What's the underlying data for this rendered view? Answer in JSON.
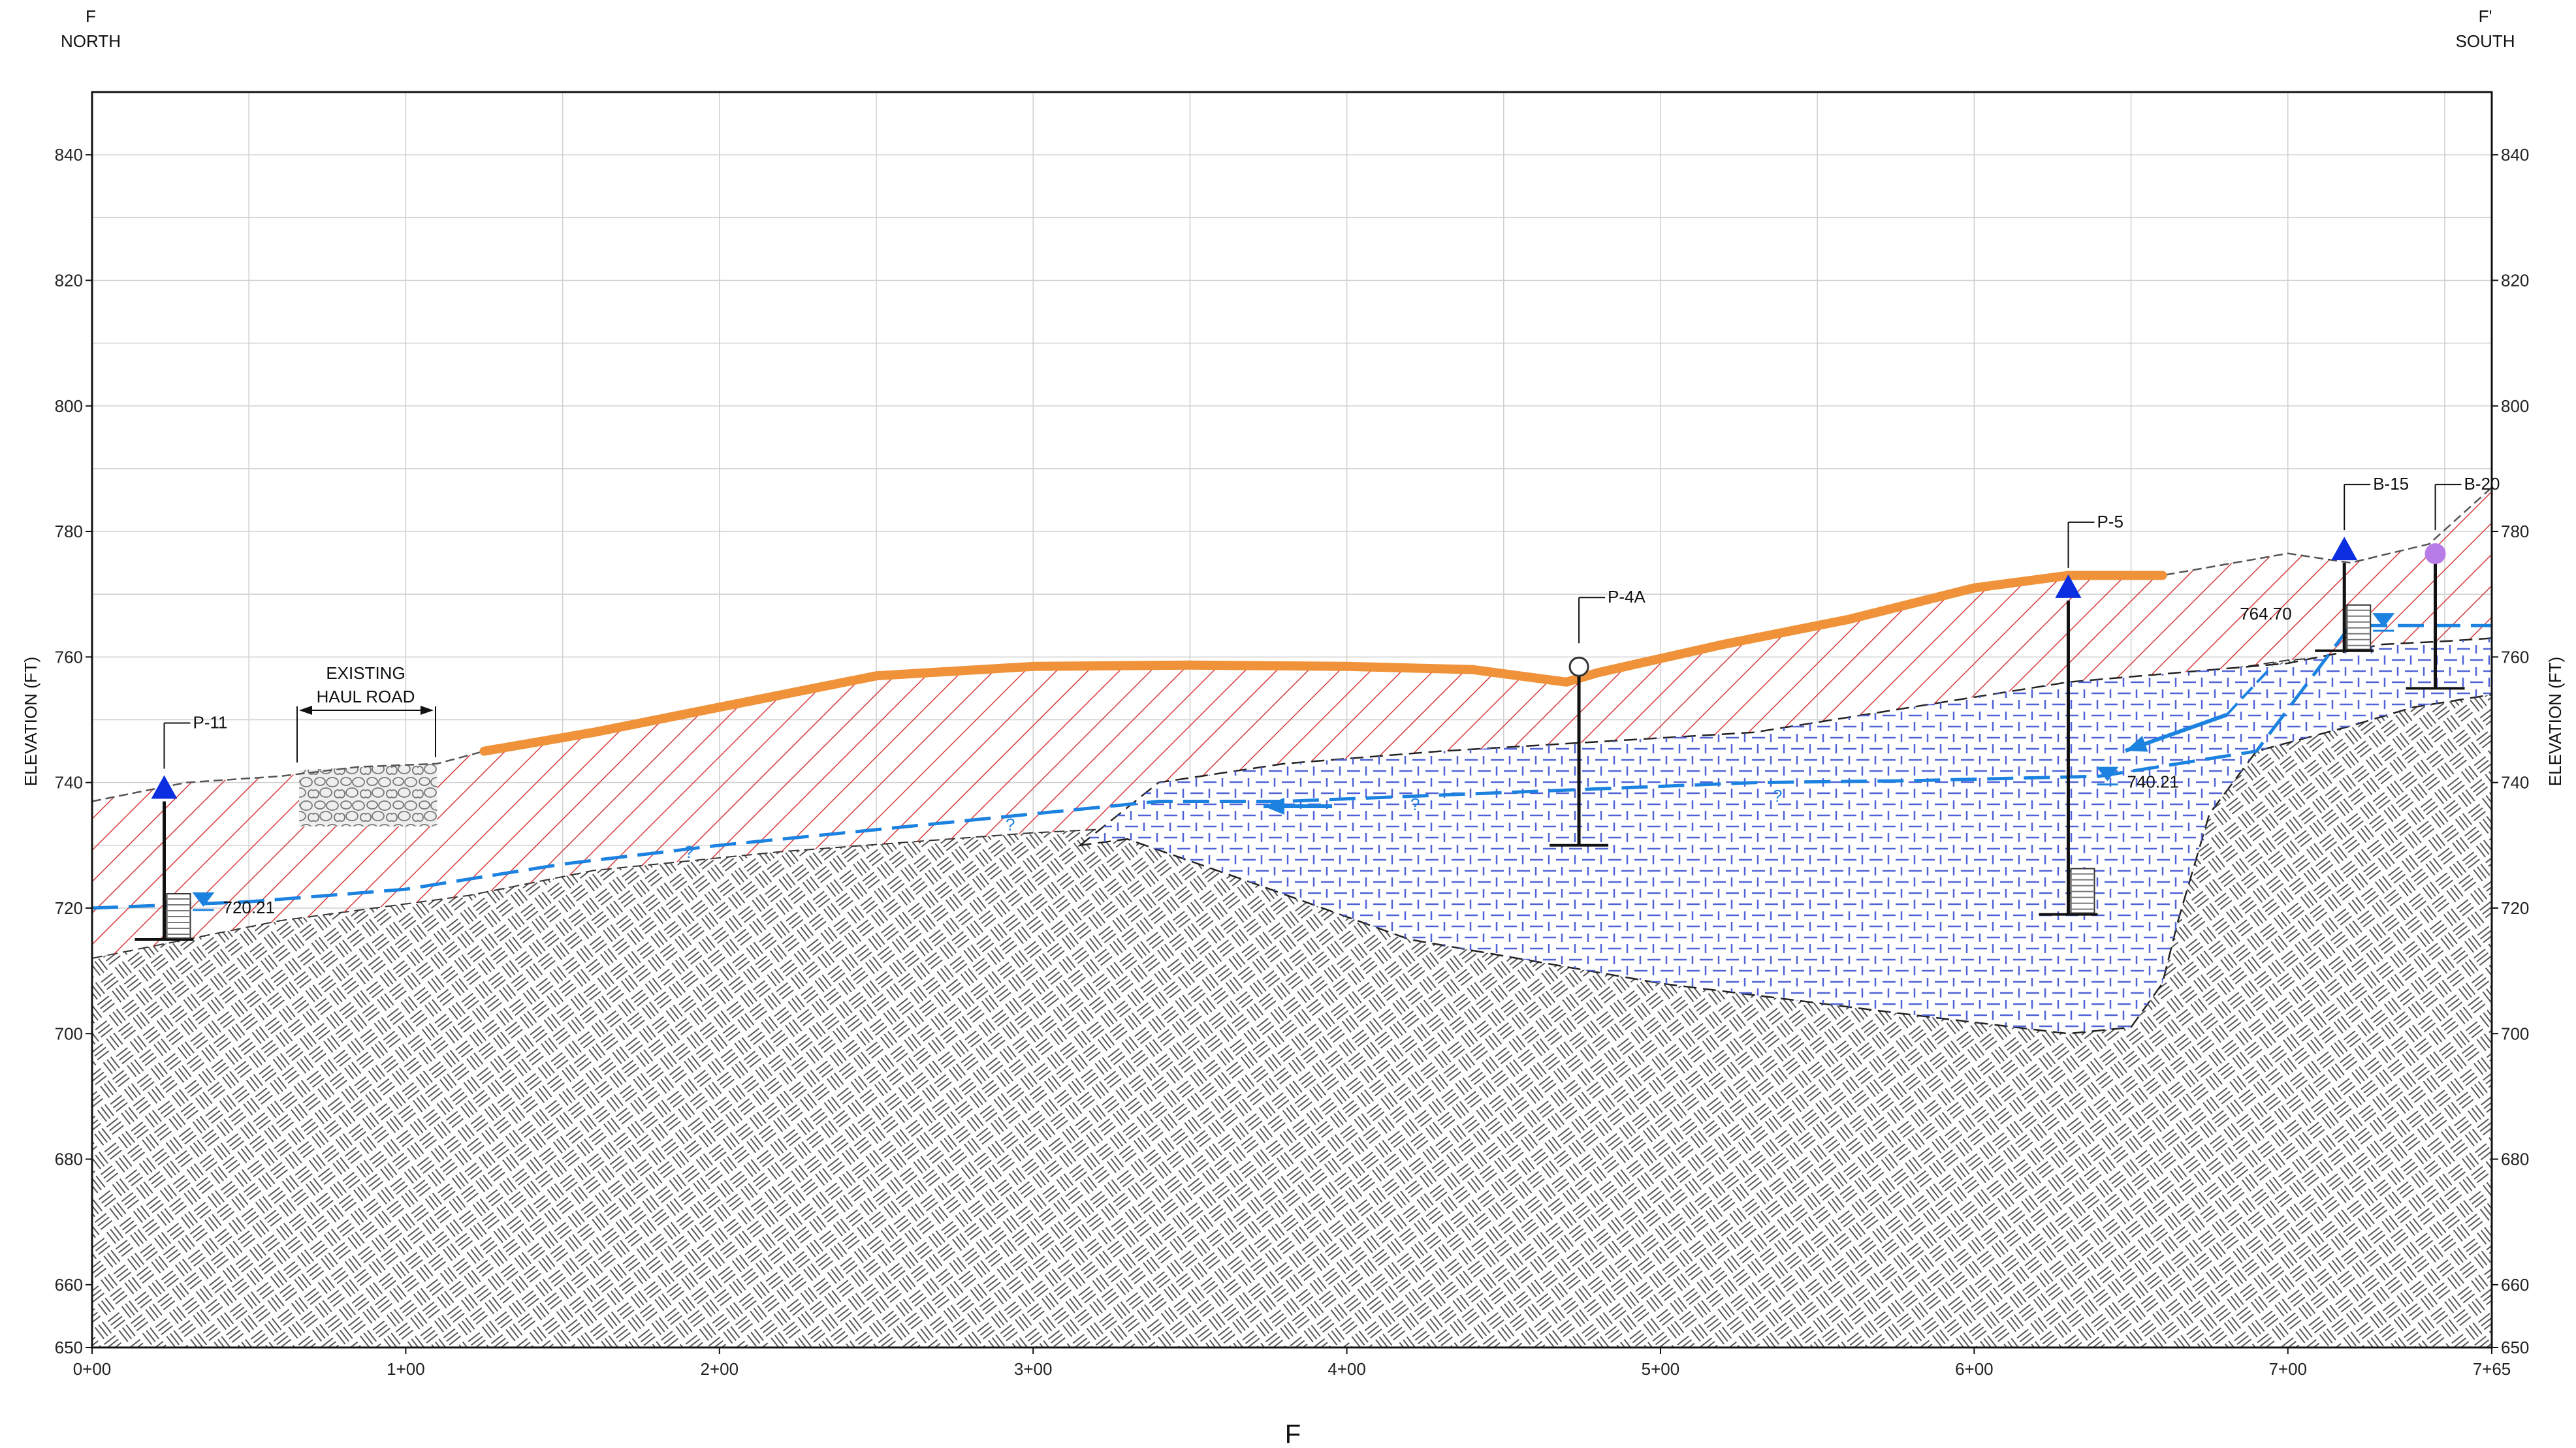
{
  "header": {
    "left_letter": "F",
    "left_dir": "NORTH",
    "right_letter": "F'",
    "right_dir": "SOUTH",
    "bottom_label": "F"
  },
  "axes": {
    "y_label_left": "ELEVATION (FT)",
    "y_label_right": "ELEVATION (FT)",
    "y_range": [
      650,
      850
    ],
    "x_range": [
      0,
      765
    ],
    "y_ticks": [
      {
        "value": 650,
        "label": "650"
      },
      {
        "value": 660,
        "label": "660"
      },
      {
        "value": 680,
        "label": "680"
      },
      {
        "value": 700,
        "label": "700"
      },
      {
        "value": 720,
        "label": "720"
      },
      {
        "value": 740,
        "label": "740"
      },
      {
        "value": 760,
        "label": "760"
      },
      {
        "value": 780,
        "label": "780"
      },
      {
        "value": 800,
        "label": "800"
      },
      {
        "value": 820,
        "label": "820"
      },
      {
        "value": 840,
        "label": "840"
      }
    ],
    "x_ticks": [
      {
        "value": 0,
        "label": "0+00"
      },
      {
        "value": 100,
        "label": "1+00"
      },
      {
        "value": 200,
        "label": "2+00"
      },
      {
        "value": 300,
        "label": "3+00"
      },
      {
        "value": 400,
        "label": "4+00"
      },
      {
        "value": 500,
        "label": "5+00"
      },
      {
        "value": 600,
        "label": "6+00"
      },
      {
        "value": 700,
        "label": "7+00"
      },
      {
        "value": 765,
        "label": "7+65"
      }
    ]
  },
  "features": {
    "haul_road_line1": "EXISTING",
    "haul_road_line2": "HAUL ROAD",
    "question_mark": "?"
  },
  "wells": [
    {
      "name": "P-11",
      "x": 23,
      "top": 737,
      "bottom": 715,
      "water": 720.21,
      "water_label": "720.21",
      "marker": "triangle"
    },
    {
      "name": "P-4A",
      "x": 474,
      "top": 757,
      "bottom": 730,
      "marker": "circle-open"
    },
    {
      "name": "P-5",
      "x": 630,
      "top": 769,
      "bottom": 719,
      "water": 740.21,
      "water_label": "740.21",
      "marker": "triangle"
    },
    {
      "name": "B-15",
      "x": 718,
      "top": 775,
      "bottom": 761,
      "water": 764.7,
      "water_label": "764.70",
      "marker": "triangle"
    },
    {
      "name": "B-20",
      "x": 747,
      "top": 775,
      "bottom": 755,
      "marker": "circle-filled"
    }
  ],
  "colors": {
    "fill_red": "#d83a3a",
    "fill_blue": "#4f63d6",
    "topsoil_orange": "#f0923a",
    "water_blue": "#1c82e0",
    "marker_blue": "#0a2ee0",
    "marker_purple": "#b77ce8",
    "grid": "#cfcfcf"
  }
}
